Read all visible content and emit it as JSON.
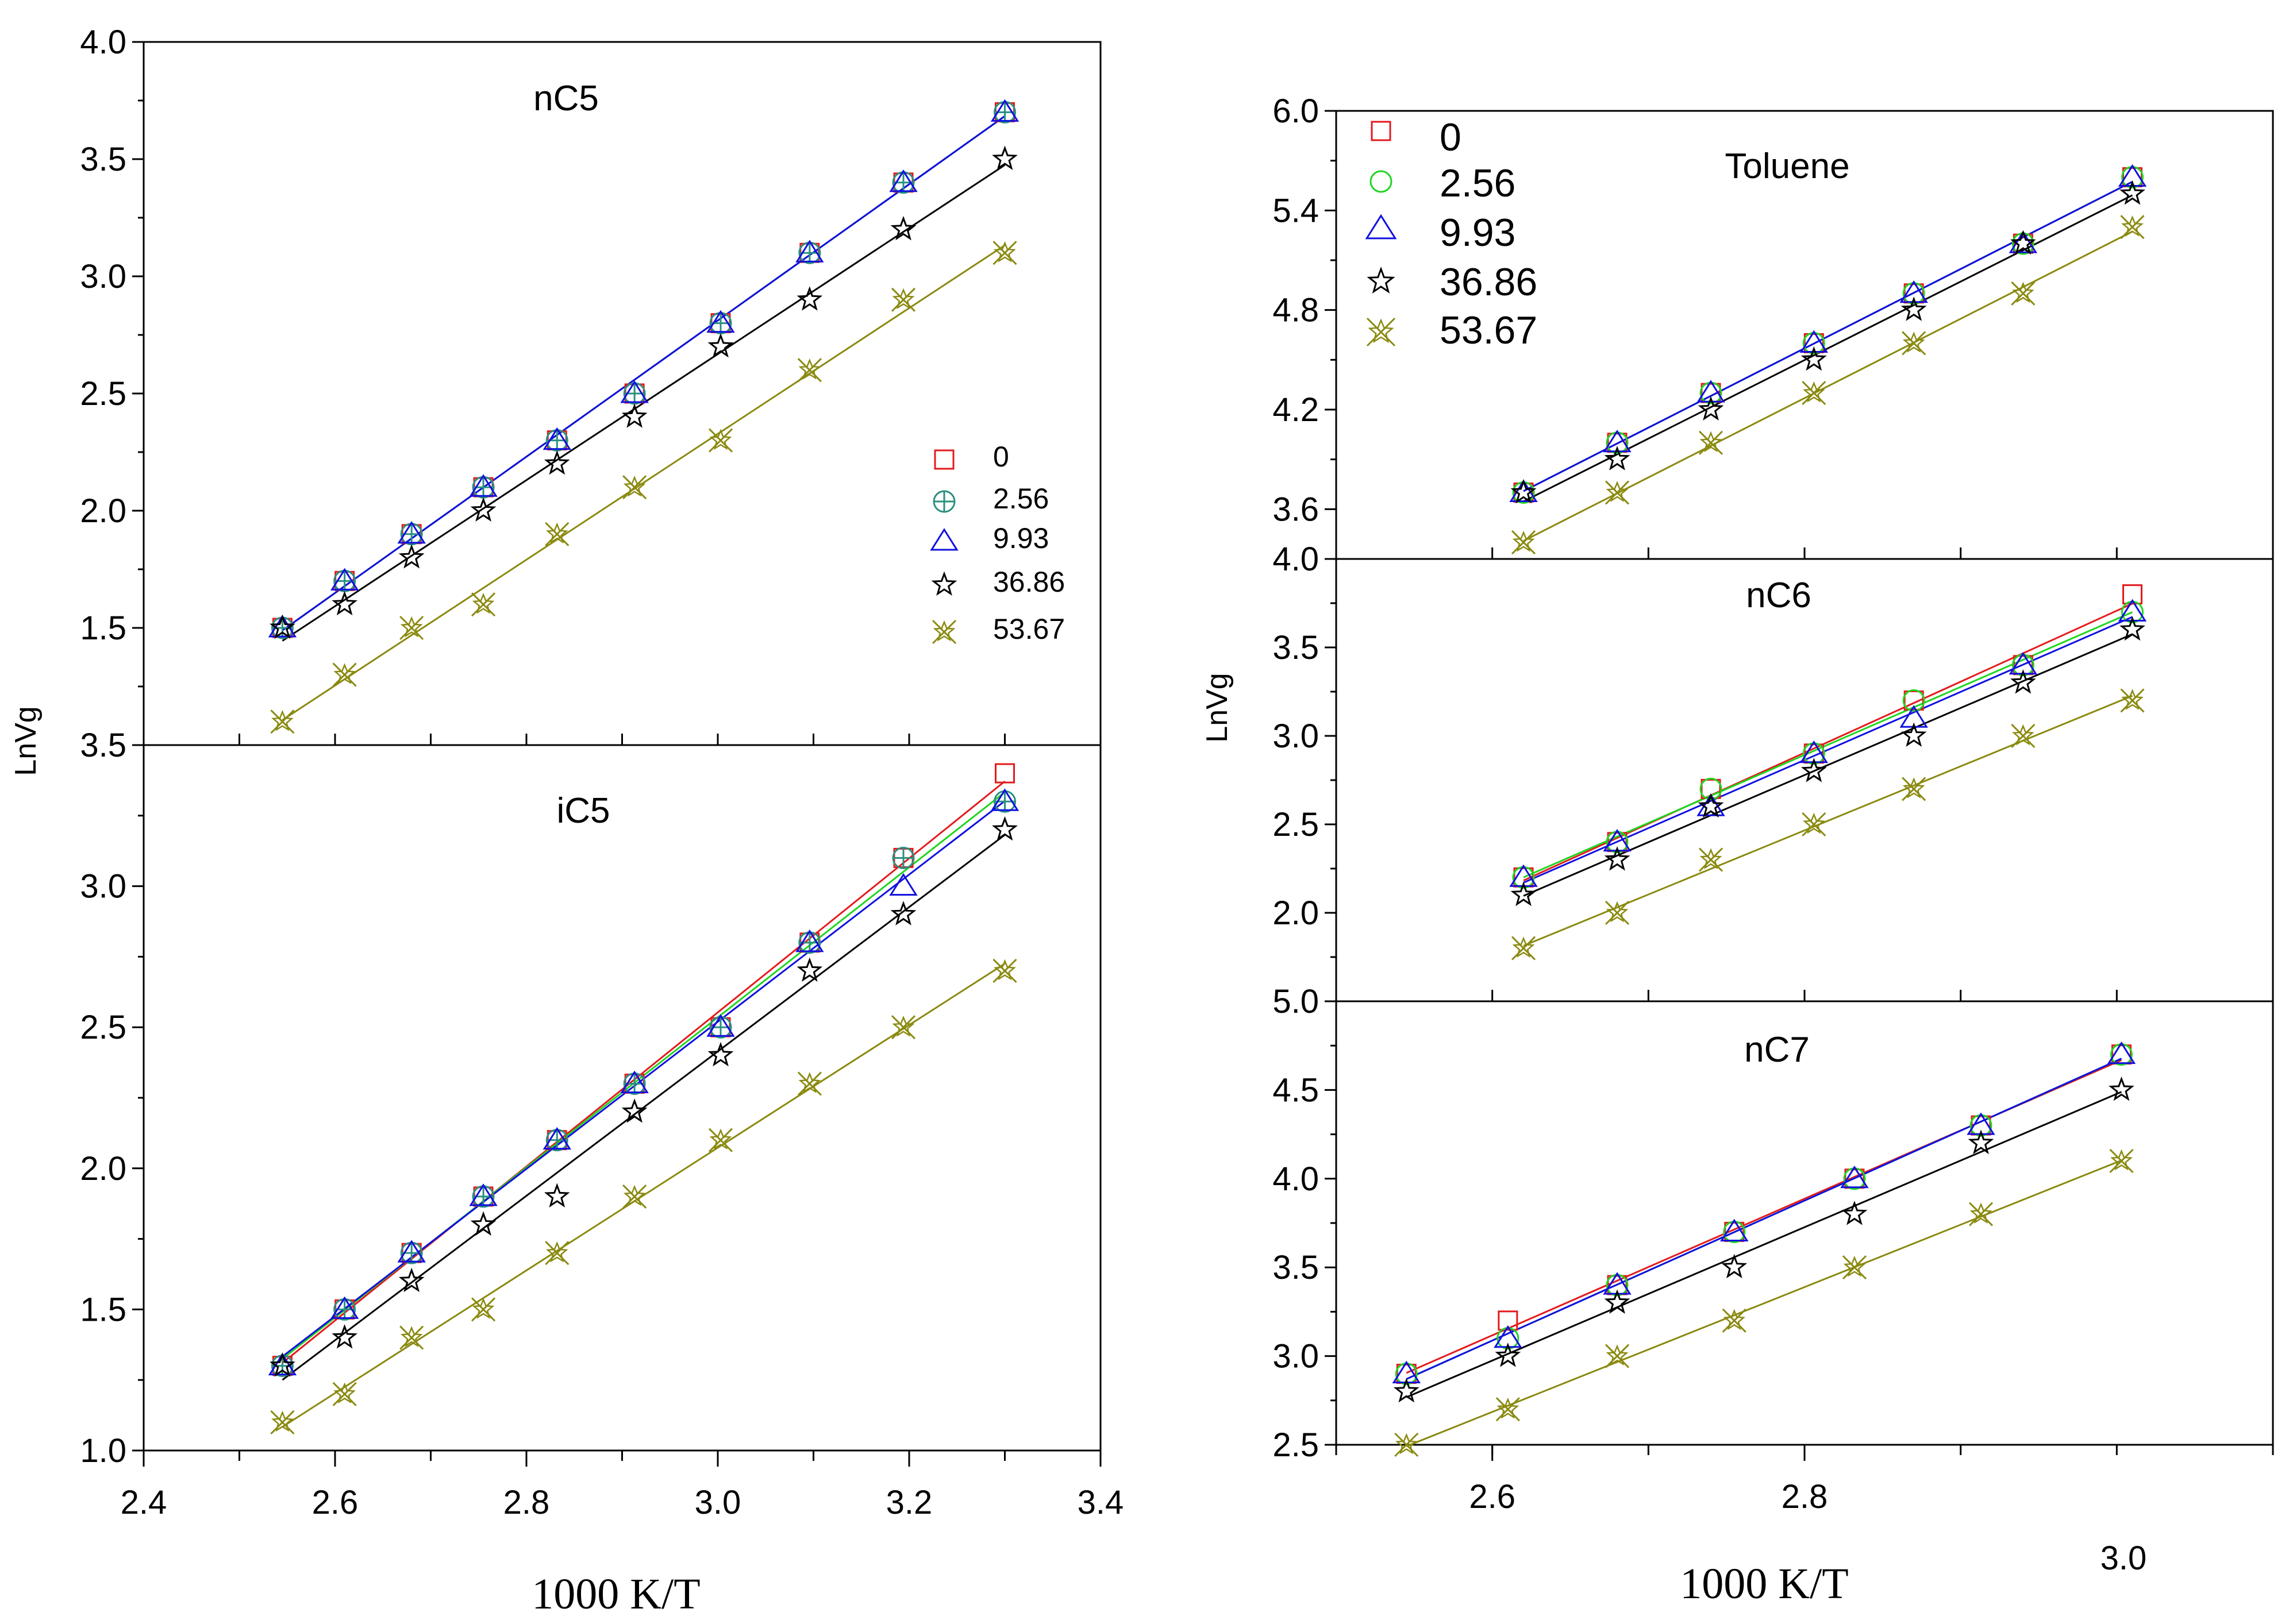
{
  "colors": {
    "s0": "#e41a1c",
    "s1": "#1fd51f",
    "s2": "#1010e0",
    "s3": "#000000",
    "s4": "#8a8a10",
    "s1_left": "#2a9080"
  },
  "left_figure": {
    "ylabel": "LnVg",
    "xlabel": "1000 K/T",
    "legend": {
      "labels": [
        "0",
        "2.56",
        "9.93",
        "36.86",
        "53.67"
      ]
    }
  },
  "right_figure": {
    "ylabel": "LnVg",
    "xlabel": "1000 K/T",
    "extra_tick_label": "3.0",
    "legend": {
      "labels": [
        "0",
        "2.56",
        "9.93",
        "36.86",
        "53.67"
      ]
    }
  },
  "chart_data": [
    {
      "id": "nC5",
      "type": "scatter",
      "title": "nC5",
      "xlabel": "1000 K/T",
      "ylabel": "LnVg",
      "xlim": [
        2.4,
        3.4
      ],
      "ylim": [
        1.0,
        4.0
      ],
      "xticks": [],
      "yticks": [
        "1.5",
        "2.0",
        "2.5",
        "3.0",
        "3.5",
        "4.0"
      ],
      "yticks_val": [
        1.5,
        2.0,
        2.5,
        3.0,
        3.5,
        4.0
      ],
      "x": [
        2.545,
        2.61,
        2.68,
        2.755,
        2.832,
        2.913,
        3.003,
        3.096,
        3.194,
        3.3
      ],
      "series": [
        {
          "name": "0",
          "values": [
            1.5,
            1.7,
            1.9,
            2.1,
            2.3,
            2.5,
            2.8,
            3.1,
            3.4,
            3.7
          ]
        },
        {
          "name": "2.56",
          "values": [
            1.5,
            1.7,
            1.9,
            2.1,
            2.3,
            2.5,
            2.8,
            3.1,
            3.4,
            3.7
          ]
        },
        {
          "name": "9.93",
          "values": [
            1.5,
            1.7,
            1.9,
            2.1,
            2.3,
            2.5,
            2.8,
            3.1,
            3.4,
            3.7
          ]
        },
        {
          "name": "36.86",
          "values": [
            1.5,
            1.6,
            1.8,
            2.0,
            2.2,
            2.4,
            2.7,
            2.9,
            3.2,
            3.5
          ]
        },
        {
          "name": "53.67",
          "values": [
            1.1,
            1.3,
            1.5,
            1.6,
            1.9,
            2.1,
            2.3,
            2.6,
            2.9,
            3.1
          ]
        }
      ]
    },
    {
      "id": "iC5",
      "type": "scatter",
      "title": "iC5",
      "xlabel": "1000 K/T",
      "ylabel": "LnVg",
      "xlim": [
        2.4,
        3.4
      ],
      "ylim": [
        1.0,
        3.5
      ],
      "xticks": [
        "2.4",
        "2.6",
        "2.8",
        "3.0",
        "3.2",
        "3.4"
      ],
      "xticks_val": [
        2.4,
        2.6,
        2.8,
        3.0,
        3.2,
        3.4
      ],
      "yticks": [
        "1.0",
        "1.5",
        "2.0",
        "2.5",
        "3.0",
        "3.5"
      ],
      "yticks_val": [
        1.0,
        1.5,
        2.0,
        2.5,
        3.0,
        3.5
      ],
      "x": [
        2.545,
        2.61,
        2.68,
        2.755,
        2.832,
        2.913,
        3.003,
        3.096,
        3.194,
        3.3
      ],
      "series": [
        {
          "name": "0",
          "values": [
            1.3,
            1.5,
            1.7,
            1.9,
            2.1,
            2.3,
            2.5,
            2.8,
            3.1,
            3.4
          ]
        },
        {
          "name": "2.56",
          "values": [
            1.3,
            1.5,
            1.7,
            1.9,
            2.1,
            2.3,
            2.5,
            2.8,
            3.1,
            3.3
          ]
        },
        {
          "name": "9.93",
          "values": [
            1.3,
            1.5,
            1.7,
            1.9,
            2.1,
            2.3,
            2.5,
            2.8,
            3.0,
            3.3
          ]
        },
        {
          "name": "36.86",
          "values": [
            1.3,
            1.4,
            1.6,
            1.8,
            1.9,
            2.2,
            2.4,
            2.7,
            2.9,
            3.2
          ]
        },
        {
          "name": "53.67",
          "values": [
            1.1,
            1.2,
            1.4,
            1.5,
            1.7,
            1.9,
            2.1,
            2.3,
            2.5,
            2.7
          ]
        }
      ]
    },
    {
      "id": "Toluene",
      "type": "scatter",
      "title": "Toluene",
      "xlabel": "1000 K/T",
      "ylabel": "LnVg",
      "xlim": [
        2.5,
        3.1
      ],
      "ylim": [
        3.3,
        6.0
      ],
      "xticks": [],
      "yticks": [
        "3.6",
        "4.2",
        "4.8",
        "5.4",
        "6.0"
      ],
      "yticks_val": [
        3.6,
        4.2,
        4.8,
        5.4,
        6.0
      ],
      "x": [
        2.62,
        2.68,
        2.74,
        2.806,
        2.87,
        2.94,
        3.01
      ],
      "series": [
        {
          "name": "0",
          "values": [
            3.7,
            4.0,
            4.3,
            4.6,
            4.9,
            5.2,
            5.6
          ]
        },
        {
          "name": "2.56",
          "values": [
            3.7,
            4.0,
            4.3,
            4.6,
            4.9,
            5.2,
            5.6
          ]
        },
        {
          "name": "9.93",
          "values": [
            3.7,
            4.0,
            4.3,
            4.6,
            4.9,
            5.2,
            5.6
          ]
        },
        {
          "name": "36.86",
          "values": [
            3.7,
            3.9,
            4.2,
            4.5,
            4.8,
            5.2,
            5.5
          ]
        },
        {
          "name": "53.67",
          "values": [
            3.4,
            3.7,
            4.0,
            4.3,
            4.6,
            4.9,
            5.3
          ]
        }
      ]
    },
    {
      "id": "nC6",
      "type": "scatter",
      "title": "nC6",
      "xlabel": "1000 K/T",
      "ylabel": "LnVg",
      "xlim": [
        2.5,
        3.1
      ],
      "ylim": [
        1.5,
        4.0
      ],
      "xticks": [],
      "yticks": [
        "2.0",
        "2.5",
        "3.0",
        "3.5",
        "4.0"
      ],
      "yticks_val": [
        2.0,
        2.5,
        3.0,
        3.5,
        4.0
      ],
      "x": [
        2.62,
        2.68,
        2.74,
        2.806,
        2.87,
        2.94,
        3.01
      ],
      "series": [
        {
          "name": "0",
          "values": [
            2.2,
            2.4,
            2.7,
            2.9,
            3.2,
            3.4,
            3.8
          ]
        },
        {
          "name": "2.56",
          "values": [
            2.2,
            2.4,
            2.7,
            2.9,
            3.2,
            3.4,
            3.7
          ]
        },
        {
          "name": "9.93",
          "values": [
            2.2,
            2.4,
            2.6,
            2.9,
            3.1,
            3.4,
            3.7
          ]
        },
        {
          "name": "36.86",
          "values": [
            2.1,
            2.3,
            2.6,
            2.8,
            3.0,
            3.3,
            3.6
          ]
        },
        {
          "name": "53.67",
          "values": [
            1.8,
            2.0,
            2.3,
            2.5,
            2.7,
            3.0,
            3.2
          ]
        }
      ]
    },
    {
      "id": "nC7",
      "type": "scatter",
      "title": "nC7",
      "xlabel": "1000 K/T",
      "ylabel": "LnVg",
      "xlim": [
        2.5,
        3.1
      ],
      "ylim": [
        2.5,
        5.0
      ],
      "xticks": [
        "2.6",
        "2.8"
      ],
      "xticks_val": [
        2.6,
        2.8
      ],
      "yticks": [
        "2.5",
        "3.0",
        "3.5",
        "4.0",
        "4.5",
        "5.0"
      ],
      "yticks_val": [
        2.5,
        3.0,
        3.5,
        4.0,
        4.5,
        5.0
      ],
      "x": [
        2.545,
        2.61,
        2.68,
        2.755,
        2.832,
        2.913,
        3.003
      ],
      "series": [
        {
          "name": "0",
          "values": [
            2.9,
            3.2,
            3.4,
            3.7,
            4.0,
            4.3,
            4.7
          ]
        },
        {
          "name": "2.56",
          "values": [
            2.9,
            3.1,
            3.4,
            3.7,
            4.0,
            4.3,
            4.7
          ]
        },
        {
          "name": "9.93",
          "values": [
            2.9,
            3.1,
            3.4,
            3.7,
            4.0,
            4.3,
            4.7
          ]
        },
        {
          "name": "36.86",
          "values": [
            2.8,
            3.0,
            3.3,
            3.5,
            3.8,
            4.2,
            4.5
          ]
        },
        {
          "name": "53.67",
          "values": [
            2.5,
            2.7,
            3.0,
            3.2,
            3.5,
            3.8,
            4.1
          ]
        }
      ]
    }
  ]
}
